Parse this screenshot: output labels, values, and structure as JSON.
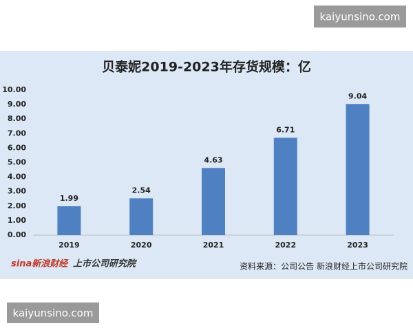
{
  "watermarks": [
    "kaiyunsino.com",
    "kaiyunsino.com"
  ],
  "chart_data": {
    "type": "bar",
    "title": "贝泰妮2019-2023年存货规模：亿",
    "categories": [
      "2019",
      "2020",
      "2021",
      "2022",
      "2023"
    ],
    "values": [
      1.99,
      2.54,
      4.63,
      6.71,
      9.04
    ],
    "color": "#4f81c2",
    "ylim": [
      0,
      10
    ],
    "yticks": [
      {
        "value": 0,
        "label": "0.00"
      },
      {
        "value": 1,
        "label": "1.00"
      },
      {
        "value": 2,
        "label": "2.00"
      },
      {
        "value": 3,
        "label": "3.00"
      },
      {
        "value": 4,
        "label": "4.00"
      },
      {
        "value": 5,
        "label": "5.00"
      },
      {
        "value": 6,
        "label": "6.00"
      },
      {
        "value": 7,
        "label": "7.00"
      },
      {
        "value": 8,
        "label": "8.00"
      },
      {
        "value": 9,
        "label": "9.00"
      },
      {
        "value": 10,
        "label": "10.00"
      }
    ],
    "grid": false
  },
  "footer": {
    "logos": [
      "sina新浪财经",
      "上市公司研究院"
    ],
    "source": "资料来源：公司公告 新浪财经上市公司研究院"
  }
}
